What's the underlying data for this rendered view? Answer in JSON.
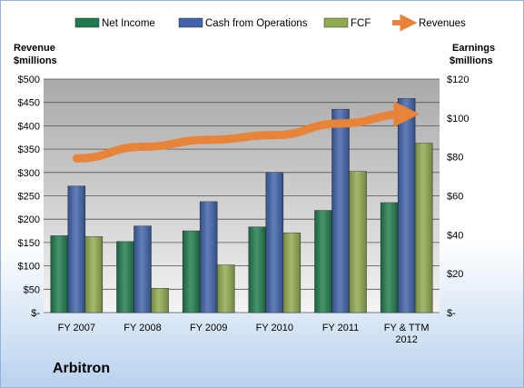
{
  "chart_data": {
    "type": "bar",
    "title": "Arbitron",
    "categories": [
      "FY 2007",
      "FY 2008",
      "FY 2009",
      "FY 2010",
      "FY 2011",
      "FY & TTM 2012"
    ],
    "series": [
      {
        "name": "Net Income",
        "axis": "right",
        "color": "#1f7a4d",
        "values": [
          39.5,
          36.5,
          42,
          44,
          52.5,
          56.5
        ]
      },
      {
        "name": "Cash from Operations",
        "axis": "right",
        "color": "#3f62a8",
        "values": [
          65,
          44.5,
          57,
          72,
          104.5,
          110
        ]
      },
      {
        "name": "FCF",
        "axis": "right",
        "color": "#8faa4e",
        "values": [
          39,
          12.5,
          24.5,
          41,
          72.5,
          87
        ]
      },
      {
        "name": "Revenues",
        "type": "line",
        "axis": "left",
        "color": "#e8833a",
        "values": [
          330,
          355,
          370,
          380,
          405,
          425
        ]
      }
    ],
    "y_left": {
      "label_line1": "Revenue",
      "label_line2": "$millions",
      "range": [
        0,
        500
      ],
      "ticks": [
        "$-",
        "$50",
        "$100",
        "$150",
        "$200",
        "$250",
        "$300",
        "$350",
        "$400",
        "$450",
        "$500"
      ]
    },
    "y_right": {
      "label_line1": "Earnings",
      "label_line2": "$millions",
      "range": [
        0,
        120
      ],
      "ticks": [
        "$-",
        "$20",
        "$40",
        "$60",
        "$80",
        "$100",
        "$120"
      ]
    },
    "x_label_lines": [
      [
        "FY 2007"
      ],
      [
        "FY 2008"
      ],
      [
        "FY 2009"
      ],
      [
        "FY 2010"
      ],
      [
        "FY 2011"
      ],
      [
        "FY & TTM",
        "2012"
      ]
    ],
    "legend_position": "top",
    "grid": true
  }
}
